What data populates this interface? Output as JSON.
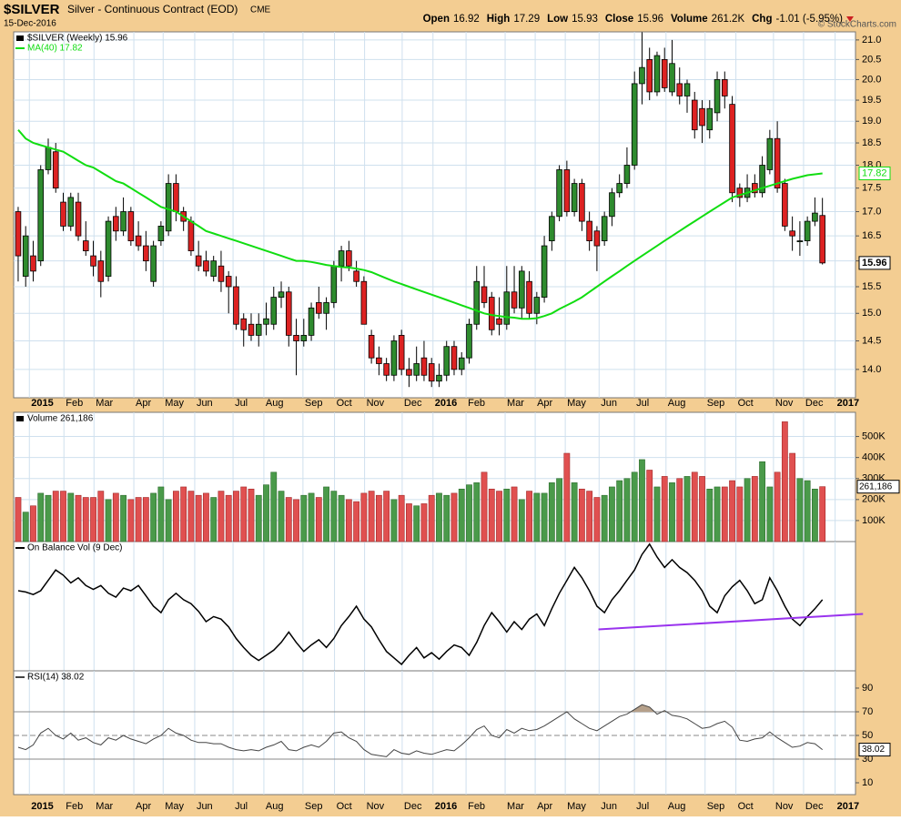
{
  "chart_data": [
    {
      "type": "candlestick",
      "title": "$SILVER",
      "subtitle": "Silver - Continuous Contract (EOD)",
      "exchange": "CME",
      "date": "15-Dec-2016",
      "stats": [
        {
          "label": "Open",
          "value": "16.92"
        },
        {
          "label": "High",
          "value": "17.29"
        },
        {
          "label": "Low",
          "value": "15.93"
        },
        {
          "label": "Close",
          "value": "15.96"
        },
        {
          "label": "Volume",
          "value": "261.2K"
        },
        {
          "label": "Chg",
          "value": "-1.01 (-5.95%)"
        }
      ],
      "copyright": "© StockCharts.com",
      "log_scale": true,
      "grid": true,
      "xlim": [
        -0.6,
        111.4
      ],
      "xticks": [
        {
          "value": 2.7,
          "label": "2015"
        },
        {
          "value": 7.3,
          "label": "Feb"
        },
        {
          "value": 11.3,
          "label": "Mar"
        },
        {
          "value": 16.6,
          "label": "Apr"
        },
        {
          "value": 20.5,
          "label": "May"
        },
        {
          "value": 24.7,
          "label": "Jun"
        },
        {
          "value": 29.8,
          "label": "Jul"
        },
        {
          "value": 33.9,
          "label": "Aug"
        },
        {
          "value": 39.1,
          "label": "Sep"
        },
        {
          "value": 43.3,
          "label": "Oct"
        },
        {
          "value": 47.3,
          "label": "Nov"
        },
        {
          "value": 52.3,
          "label": "Dec"
        },
        {
          "value": 56.4,
          "label": "2016"
        },
        {
          "value": 60.8,
          "label": "Feb"
        },
        {
          "value": 66.0,
          "label": "Mar"
        },
        {
          "value": 70.0,
          "label": "Apr"
        },
        {
          "value": 74.0,
          "label": "May"
        },
        {
          "value": 78.5,
          "label": "Jun"
        },
        {
          "value": 83.2,
          "label": "Jul"
        },
        {
          "value": 87.4,
          "label": "Aug"
        },
        {
          "value": 92.6,
          "label": "Sep"
        },
        {
          "value": 96.7,
          "label": "Oct"
        },
        {
          "value": 101.7,
          "label": "Nov"
        },
        {
          "value": 105.7,
          "label": "Dec"
        },
        {
          "value": 109.9,
          "label": "2017"
        }
      ],
      "ylim": [
        13.52,
        21.21
      ],
      "yticks": [
        {
          "value": 14,
          "label": "14.0"
        },
        {
          "value": 14.5,
          "label": "14.5"
        },
        {
          "value": 15,
          "label": "15.0"
        },
        {
          "value": 15.5,
          "label": "15.5"
        },
        {
          "value": 16,
          "label": "16.0"
        },
        {
          "value": 16.5,
          "label": "16.5"
        },
        {
          "value": 17,
          "label": "17.0"
        },
        {
          "value": 17.5,
          "label": "17.5"
        },
        {
          "value": 18,
          "label": "18.0"
        },
        {
          "value": 18.5,
          "label": "18.5"
        },
        {
          "value": 19,
          "label": "19.0"
        },
        {
          "value": 19.5,
          "label": "19.5"
        },
        {
          "value": 20,
          "label": "20.0"
        },
        {
          "value": 20.5,
          "label": "20.5"
        },
        {
          "value": 21,
          "label": "21.0"
        }
      ],
      "series": [
        {
          "name": "$SILVER (Weekly) 15.96",
          "color": "#000000",
          "up_color": "#2e8b2e",
          "down_color": "#dd2222",
          "open": [
            17.0,
            15.7,
            16.1,
            16.0,
            17.9,
            18.3,
            17.2,
            16.7,
            17.2,
            16.4,
            16.1,
            16.0,
            15.7,
            16.9,
            16.6,
            17.0,
            16.5,
            16.3,
            15.6,
            16.4,
            16.6,
            17.6,
            17.0,
            16.8,
            16.1,
            16.0,
            15.7,
            15.9,
            15.7,
            15.5,
            14.9,
            14.8,
            14.6,
            14.8,
            14.8,
            15.3,
            15.4,
            14.6,
            14.5,
            14.6,
            15.2,
            15.0,
            15.2,
            15.9,
            16.2,
            15.8,
            15.6,
            14.6,
            14.2,
            14.1,
            13.9,
            14.6,
            14.0,
            13.9,
            14.2,
            14.1,
            13.8,
            13.9,
            14.4,
            14.0,
            14.2,
            14.8,
            15.5,
            15.3,
            14.9,
            14.8,
            15.4,
            15.1,
            15.6,
            15.0,
            15.3,
            16.4,
            16.9,
            17.9,
            17.0,
            17.6,
            16.8,
            16.6,
            16.4,
            16.9,
            17.4,
            17.6,
            18.0,
            19.9,
            20.5,
            19.7,
            20.5,
            19.7,
            19.9,
            19.6,
            19.5,
            19.3,
            18.8,
            19.2,
            20.0,
            19.4,
            17.5,
            17.3,
            17.6,
            17.4,
            17.9,
            18.6,
            17.6,
            16.6,
            16.4,
            16.4,
            16.8,
            16.92
          ],
          "high": [
            17.1,
            16.7,
            16.4,
            18.0,
            18.6,
            18.5,
            17.4,
            17.4,
            17.4,
            16.8,
            16.4,
            16.2,
            16.9,
            17.1,
            17.3,
            17.1,
            16.8,
            16.6,
            16.4,
            16.8,
            17.8,
            17.8,
            17.1,
            16.9,
            16.4,
            16.2,
            16.1,
            16.2,
            15.8,
            15.7,
            15.0,
            15.0,
            15.0,
            15.2,
            15.5,
            15.6,
            15.5,
            14.9,
            14.9,
            15.2,
            15.5,
            15.3,
            16.0,
            16.3,
            16.4,
            16.0,
            15.7,
            14.7,
            14.4,
            14.2,
            14.6,
            14.7,
            14.2,
            14.4,
            14.5,
            14.2,
            14.1,
            14.5,
            14.5,
            14.3,
            14.9,
            15.9,
            15.9,
            15.4,
            15.3,
            15.9,
            15.9,
            15.9,
            15.8,
            15.4,
            16.5,
            17.0,
            18.0,
            18.1,
            17.7,
            17.7,
            17.0,
            16.7,
            17.0,
            17.5,
            17.8,
            18.4,
            20.2,
            21.2,
            20.8,
            20.7,
            20.8,
            21.0,
            20.3,
            20.0,
            19.7,
            19.5,
            19.5,
            20.2,
            20.2,
            19.6,
            17.6,
            17.8,
            17.8,
            18.2,
            18.8,
            19.0,
            17.7,
            16.9,
            16.8,
            16.9,
            17.3,
            17.29
          ],
          "low": [
            15.6,
            15.5,
            15.6,
            15.9,
            17.8,
            17.4,
            16.6,
            16.6,
            16.4,
            16.1,
            15.7,
            15.3,
            15.6,
            16.4,
            16.5,
            16.3,
            16.2,
            15.8,
            15.5,
            16.3,
            16.5,
            16.8,
            16.6,
            16.1,
            15.8,
            15.7,
            15.6,
            15.4,
            15.0,
            14.7,
            14.4,
            14.5,
            14.4,
            14.6,
            14.7,
            15.1,
            14.4,
            13.9,
            14.4,
            14.5,
            14.9,
            14.7,
            15.1,
            15.6,
            15.8,
            15.5,
            14.8,
            14.1,
            13.9,
            13.8,
            13.8,
            13.9,
            13.7,
            13.8,
            13.8,
            13.7,
            13.7,
            13.8,
            13.9,
            13.9,
            14.1,
            14.7,
            15.1,
            14.6,
            14.6,
            14.7,
            15.0,
            14.9,
            14.9,
            14.8,
            15.2,
            16.2,
            16.8,
            16.9,
            16.9,
            16.6,
            16.2,
            15.8,
            16.3,
            16.7,
            17.3,
            17.5,
            17.9,
            19.4,
            19.5,
            19.6,
            19.7,
            19.6,
            19.4,
            19.2,
            18.6,
            18.5,
            18.6,
            19.0,
            19.3,
            17.2,
            17.1,
            17.2,
            17.3,
            17.3,
            17.8,
            17.4,
            16.6,
            16.2,
            16.1,
            16.3,
            16.7,
            15.93
          ],
          "close": [
            16.1,
            16.5,
            15.8,
            17.9,
            18.4,
            17.5,
            16.7,
            17.3,
            16.5,
            16.2,
            15.9,
            15.6,
            16.8,
            16.6,
            17.0,
            16.4,
            16.3,
            16.0,
            16.3,
            16.7,
            17.6,
            17.0,
            16.8,
            16.2,
            15.9,
            15.8,
            16.0,
            15.6,
            15.5,
            14.8,
            14.7,
            14.6,
            14.8,
            14.9,
            15.3,
            15.4,
            14.6,
            14.5,
            14.6,
            15.1,
            15.0,
            15.2,
            15.9,
            16.2,
            15.9,
            15.6,
            14.8,
            14.2,
            14.1,
            13.9,
            14.5,
            14.0,
            13.9,
            14.1,
            13.9,
            13.8,
            13.9,
            14.4,
            14.0,
            14.2,
            14.8,
            15.6,
            15.2,
            14.7,
            14.8,
            15.4,
            15.1,
            15.8,
            15.0,
            15.3,
            16.3,
            16.9,
            17.9,
            17.0,
            17.6,
            16.8,
            16.4,
            16.3,
            16.9,
            17.4,
            17.6,
            18.0,
            19.9,
            20.3,
            19.7,
            20.6,
            19.8,
            20.4,
            19.6,
            19.9,
            18.8,
            18.9,
            19.3,
            20.0,
            19.6,
            17.4,
            17.3,
            17.5,
            17.4,
            18.0,
            18.6,
            17.5,
            16.7,
            16.5,
            16.4,
            16.8,
            16.97,
            15.96
          ]
        },
        {
          "name": "MA(40) 17.82",
          "color": "#11dd11",
          "values": [
            18.8,
            18.6,
            18.5,
            18.45,
            18.4,
            18.35,
            18.3,
            18.2,
            18.1,
            18.0,
            17.95,
            17.85,
            17.75,
            17.65,
            17.6,
            17.5,
            17.4,
            17.3,
            17.2,
            17.1,
            17.05,
            17.0,
            16.9,
            16.8,
            16.7,
            16.6,
            16.55,
            16.5,
            16.45,
            16.4,
            16.35,
            16.3,
            16.25,
            16.2,
            16.15,
            16.1,
            16.05,
            16.0,
            16.0,
            15.98,
            15.95,
            15.92,
            15.9,
            15.88,
            15.87,
            15.85,
            15.82,
            15.78,
            15.72,
            15.66,
            15.6,
            15.55,
            15.5,
            15.45,
            15.4,
            15.35,
            15.3,
            15.25,
            15.2,
            15.15,
            15.1,
            15.05,
            15.0,
            14.97,
            14.95,
            14.93,
            14.92,
            14.9,
            14.9,
            14.91,
            14.95,
            15.0,
            15.08,
            15.15,
            15.22,
            15.3,
            15.4,
            15.5,
            15.6,
            15.7,
            15.8,
            15.9,
            16.0,
            16.1,
            16.2,
            16.3,
            16.4,
            16.5,
            16.6,
            16.7,
            16.8,
            16.9,
            17.0,
            17.1,
            17.2,
            17.3,
            17.35,
            17.4,
            17.45,
            17.5,
            17.55,
            17.6,
            17.65,
            17.7,
            17.74,
            17.78,
            17.8,
            17.82
          ]
        }
      ]
    },
    {
      "type": "bar",
      "title": "Volume 261,186",
      "last_value_label": "261,186",
      "up_color": "#4a9a4a",
      "down_color": "#e05050",
      "ylim": [
        0,
        615000
      ],
      "yticks": [
        {
          "value": 100000,
          "label": "100K"
        },
        {
          "value": 200000,
          "label": "200K"
        },
        {
          "value": 300000,
          "label": "300K"
        },
        {
          "value": 400000,
          "label": "400K"
        },
        {
          "value": 500000,
          "label": "500K"
        }
      ],
      "values": [
        210000,
        140000,
        170000,
        230000,
        220000,
        240000,
        240000,
        230000,
        220000,
        210000,
        210000,
        240000,
        200000,
        230000,
        220000,
        200000,
        210000,
        210000,
        230000,
        260000,
        200000,
        240000,
        260000,
        240000,
        220000,
        230000,
        210000,
        240000,
        220000,
        240000,
        260000,
        250000,
        220000,
        270000,
        330000,
        240000,
        210000,
        200000,
        220000,
        230000,
        210000,
        260000,
        240000,
        220000,
        200000,
        190000,
        230000,
        240000,
        220000,
        240000,
        200000,
        220000,
        180000,
        170000,
        180000,
        220000,
        230000,
        220000,
        230000,
        250000,
        270000,
        280000,
        330000,
        250000,
        240000,
        250000,
        260000,
        200000,
        240000,
        230000,
        230000,
        280000,
        300000,
        420000,
        280000,
        250000,
        240000,
        210000,
        220000,
        260000,
        290000,
        300000,
        330000,
        390000,
        340000,
        260000,
        310000,
        280000,
        300000,
        310000,
        330000,
        310000,
        250000,
        260000,
        260000,
        290000,
        260000,
        300000,
        310000,
        380000,
        260000,
        330000,
        570000,
        420000,
        300000,
        290000,
        250000,
        261186
      ]
    },
    {
      "type": "line",
      "title": "On Balance Vol (9 Dec)",
      "color": "#000000",
      "ylim": [
        0,
        100
      ],
      "values": [
        62,
        61,
        59,
        62,
        70,
        78,
        74,
        68,
        72,
        66,
        63,
        66,
        60,
        57,
        64,
        62,
        66,
        58,
        50,
        45,
        55,
        60,
        55,
        52,
        46,
        38,
        42,
        40,
        34,
        25,
        18,
        12,
        8,
        12,
        16,
        22,
        30,
        22,
        15,
        20,
        24,
        18,
        25,
        35,
        42,
        50,
        40,
        34,
        24,
        15,
        10,
        5,
        12,
        18,
        10,
        14,
        9,
        15,
        20,
        18,
        12,
        22,
        35,
        45,
        38,
        30,
        38,
        32,
        40,
        44,
        35,
        48,
        60,
        70,
        80,
        72,
        62,
        50,
        45,
        55,
        62,
        70,
        78,
        90,
        98,
        88,
        80,
        86,
        80,
        76,
        70,
        62,
        50,
        45,
        58,
        65,
        70,
        62,
        52,
        55,
        72,
        62,
        50,
        40,
        35,
        42,
        48,
        55
      ],
      "trendline": {
        "color": "#9933ee",
        "x": [
          77.2,
          112.4
        ],
        "values": [
          32,
          44
        ]
      }
    },
    {
      "type": "line",
      "title": "RSI(14) 38.02",
      "color": "#444444",
      "overbought_color": "#b5a08a",
      "ylim": [
        0,
        104.6
      ],
      "yticks": [
        10,
        30,
        50,
        70,
        90
      ],
      "values": [
        40,
        38,
        42,
        52,
        56,
        50,
        47,
        52,
        46,
        48,
        44,
        42,
        48,
        46,
        50,
        47,
        45,
        43,
        47,
        50,
        56,
        52,
        50,
        46,
        44,
        44,
        43,
        43,
        40,
        38,
        37,
        38,
        37,
        40,
        42,
        45,
        38,
        37,
        40,
        42,
        40,
        45,
        52,
        53,
        48,
        45,
        38,
        34,
        33,
        32,
        38,
        35,
        34,
        37,
        35,
        34,
        36,
        38,
        37,
        42,
        48,
        55,
        58,
        50,
        48,
        55,
        52,
        56,
        54,
        55,
        58,
        62,
        66,
        70,
        64,
        60,
        56,
        54,
        58,
        62,
        66,
        68,
        72,
        76,
        74,
        68,
        71,
        67,
        66,
        64,
        60,
        56,
        57,
        60,
        62,
        57,
        46,
        45,
        47,
        48,
        53,
        48,
        44,
        40,
        41,
        44,
        43,
        38.02
      ]
    }
  ]
}
